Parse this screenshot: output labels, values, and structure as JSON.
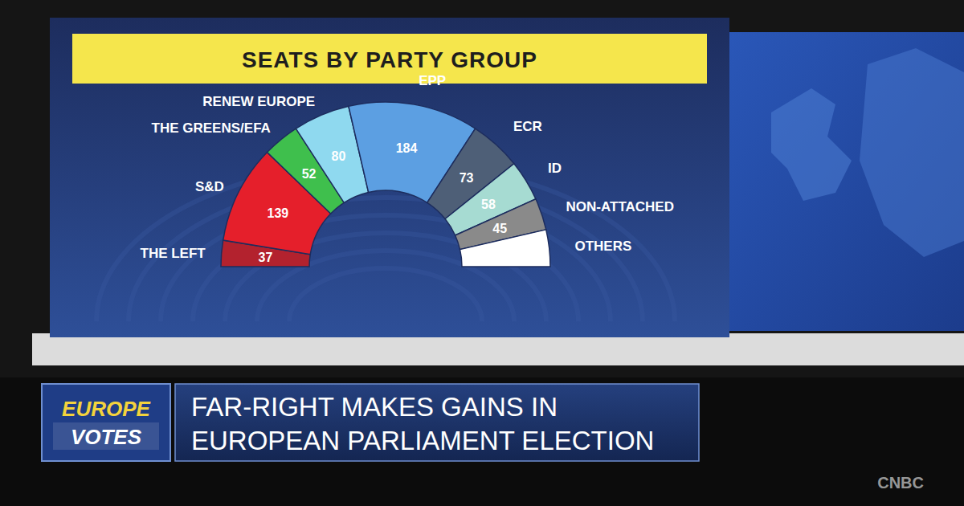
{
  "chart_data": {
    "type": "semicircle",
    "title": "SEATS BY PARTY GROUP",
    "categories": [
      "THE LEFT",
      "S&D",
      "THE GREENS/EFA",
      "RENEW EUROPE",
      "EPP",
      "ECR",
      "ID",
      "NON-ATTACHED",
      "OTHERS"
    ],
    "values": [
      37,
      139,
      52,
      80,
      184,
      73,
      58,
      45,
      52
    ],
    "value_labels": [
      "37",
      "139",
      "52",
      "80",
      "184",
      "73",
      "58",
      "45",
      null
    ],
    "colors": [
      "#b3222e",
      "#e51f2b",
      "#3fbf4d",
      "#8fd9ef",
      "#5c9fe2",
      "#4e5f77",
      "#a6dbd2",
      "#8a8a8a",
      "#ffffff"
    ],
    "data_labels": true
  },
  "banner": {
    "logo": [
      "EUROPE",
      "VOTES"
    ],
    "headline": [
      "FAR-RIGHT MAKES GAINS IN",
      "EUROPEAN PARLIAMENT ELECTION"
    ]
  },
  "network": "CNBC"
}
